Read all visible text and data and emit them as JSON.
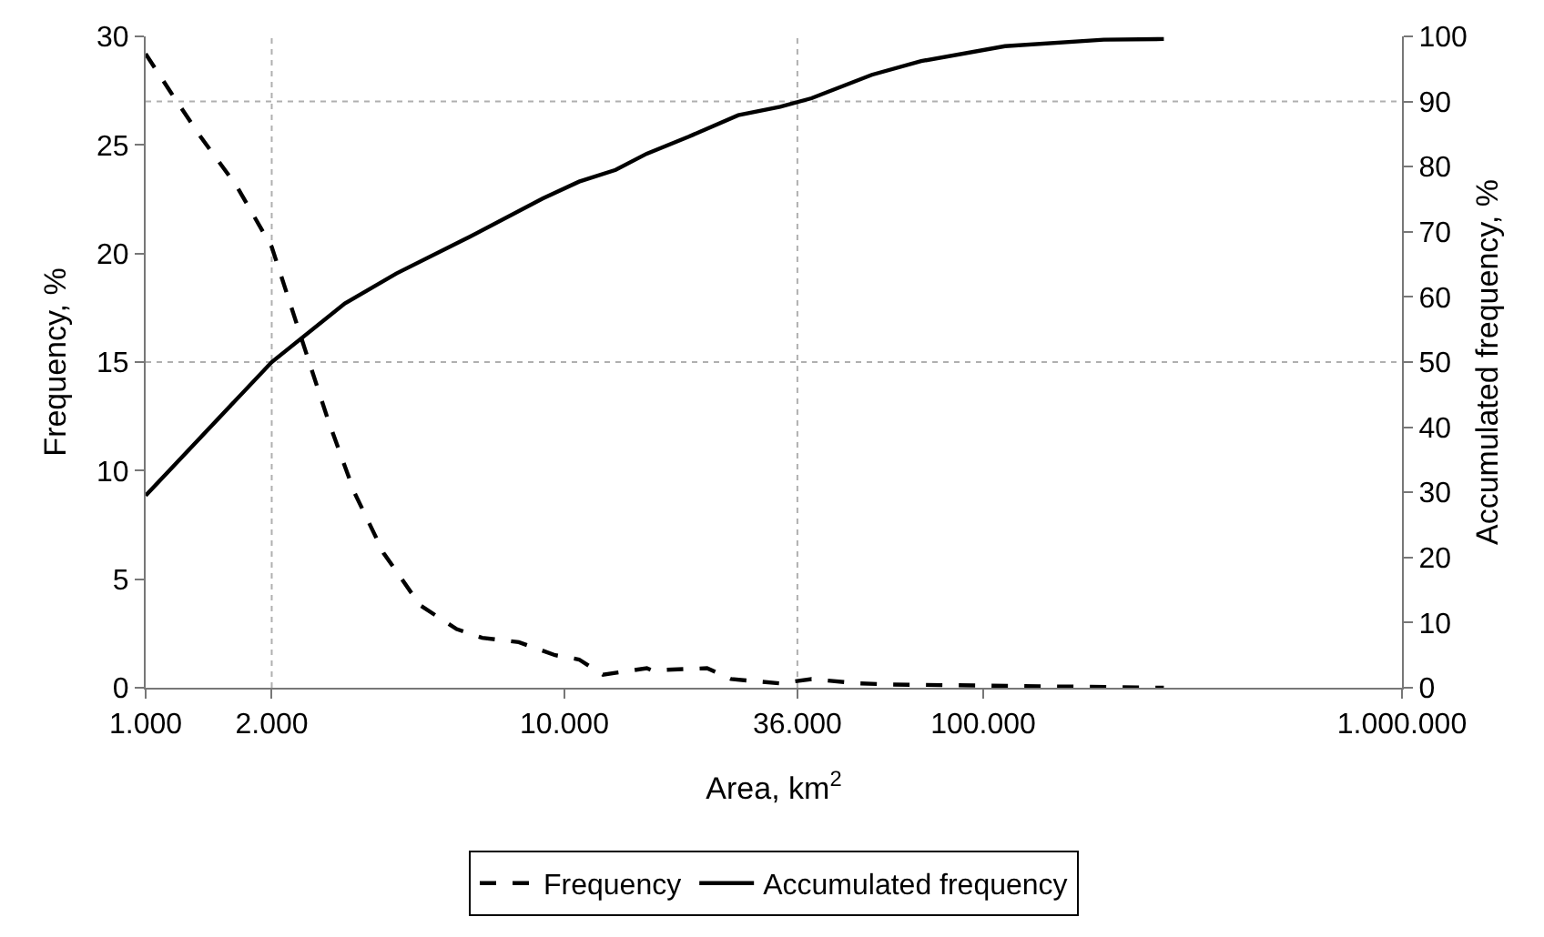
{
  "chart_data": {
    "type": "line",
    "xlabel": "Area, km$^{2}$",
    "ylabel": "Frequency, %",
    "y2label": "Accumulated frequency, %",
    "log": "x",
    "xlim": [
      1000,
      1000000
    ],
    "xticks": [
      {
        "value": 1000,
        "label": "1.000"
      },
      {
        "value": 2000,
        "label": "2.000"
      },
      {
        "value": 10000,
        "label": "10.000"
      },
      {
        "value": 36000,
        "label": "36.000"
      },
      {
        "value": 100000,
        "label": "100.000"
      },
      {
        "value": 1000000,
        "label": "1.000.000"
      }
    ],
    "ylim": [
      0,
      30
    ],
    "yticks": [
      0,
      5,
      10,
      15,
      20,
      25,
      30
    ],
    "y2lim": [
      0,
      100
    ],
    "y2ticks": [
      0,
      10,
      20,
      30,
      40,
      50,
      60,
      70,
      80,
      90,
      100
    ],
    "grid": false,
    "legend": "bottom",
    "marker": "none",
    "ref_lines": [
      {
        "axis": "x",
        "value": 2000,
        "color": "#b0b0b0",
        "line_style": "dotted"
      },
      {
        "axis": "x",
        "value": 36000,
        "color": "#b0b0b0",
        "line_style": "dotted"
      },
      {
        "axis": "y2",
        "value": 50,
        "color": "#b0b0b0",
        "line_style": "dotted"
      },
      {
        "axis": "y2",
        "value": 90,
        "color": "#b0b0b0",
        "line_style": "dotted"
      }
    ],
    "series": [
      {
        "name": "Frequency",
        "color": "#000000",
        "line_style": "dashed",
        "x": [
          1000,
          1150,
          1350,
          1650,
          2000,
          2170,
          2400,
          2730,
          3150,
          3700,
          4520,
          5530,
          6360,
          7780,
          9500,
          10840,
          12360,
          15730,
          16200,
          21900,
          25000,
          32750,
          38900,
          50500,
          59900,
          99000,
          270000
        ],
        "values": [
          29.2,
          27.4,
          25.4,
          23.1,
          20.3,
          18.2,
          15.6,
          12.3,
          9.0,
          6.2,
          3.8,
          2.7,
          2.3,
          2.1,
          1.5,
          1.3,
          0.6,
          0.9,
          0.8,
          0.9,
          0.4,
          0.2,
          0.4,
          0.2,
          0.15,
          0.1,
          0
        ]
      },
      {
        "name": "Accumulated frequency",
        "color": "#000000",
        "line_style": "solid",
        "axis": "y2",
        "x": [
          1000,
          2000,
          2990,
          3970,
          5930,
          8870,
          10840,
          13250,
          15730,
          19800,
          26000,
          32750,
          38900,
          54200,
          71100,
          112700,
          194000,
          270000
        ],
        "values": [
          29.5,
          50,
          59,
          63.6,
          69.2,
          75.1,
          77.7,
          79.5,
          82,
          84.6,
          87.9,
          89.2,
          90.5,
          94.1,
          96.2,
          98.5,
          99.5,
          99.6
        ]
      }
    ]
  }
}
